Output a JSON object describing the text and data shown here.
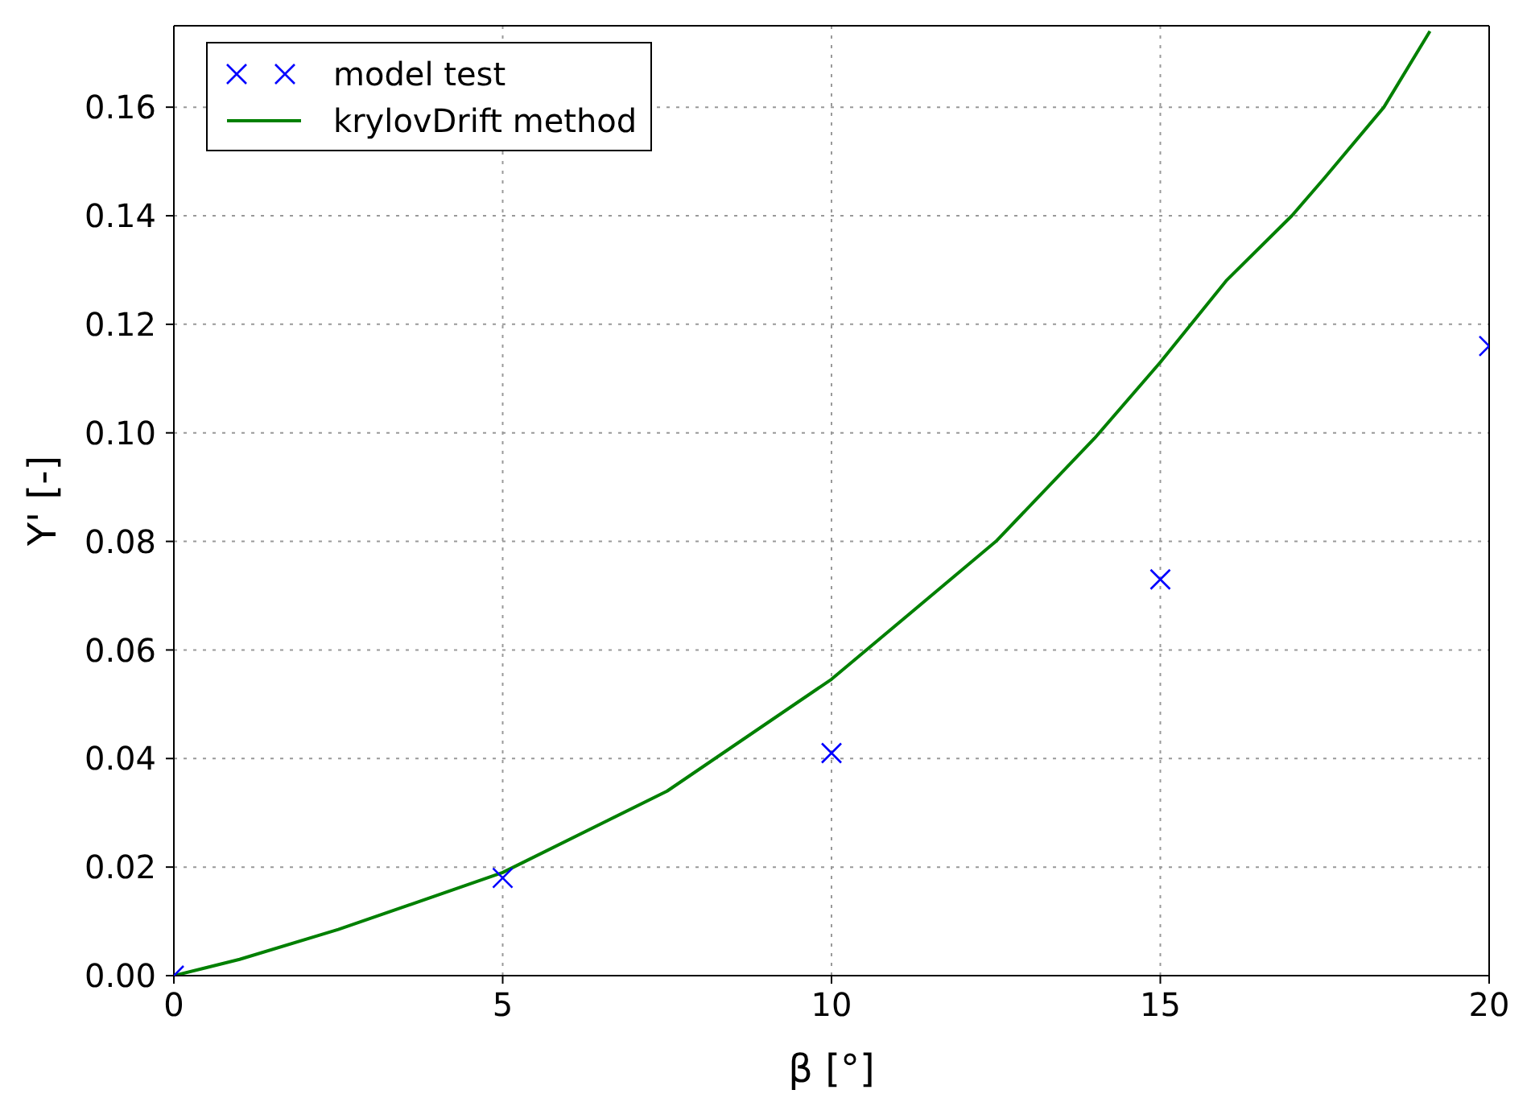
{
  "chart_data": {
    "type": "scatter",
    "xlabel": "β  [°]",
    "ylabel": "Y' [-]",
    "xlim": [
      0,
      20
    ],
    "xticks": [
      0,
      5,
      10,
      15,
      20
    ],
    "ylim": [
      0,
      0.175
    ],
    "yticks": [
      {
        "value": 0,
        "label": "0.00"
      },
      {
        "value": 0.02,
        "label": "0.02"
      },
      {
        "value": 0.04,
        "label": "0.04"
      },
      {
        "value": 0.06,
        "label": "0.06"
      },
      {
        "value": 0.08,
        "label": "0.08"
      },
      {
        "value": 0.1,
        "label": "0.10"
      },
      {
        "value": 0.12,
        "label": "0.12"
      },
      {
        "value": 0.14,
        "label": "0.14"
      },
      {
        "value": 0.16,
        "label": "0.16"
      }
    ],
    "grid": true,
    "legend": "top left",
    "series": [
      {
        "name": "model test",
        "marker": "cross",
        "color": "#0000ff",
        "x": [
          0,
          5,
          10,
          15,
          20
        ],
        "values": [
          0,
          0.018,
          0.041,
          0.073,
          0.116
        ]
      },
      {
        "name": "krylovDrift method",
        "type": "line",
        "marker": "none",
        "color": "#008000",
        "x": [
          0,
          1,
          2.5,
          5,
          7.5,
          10,
          12.5,
          14,
          15,
          16,
          17,
          17.5,
          18.4,
          19.1
        ],
        "values": [
          0,
          0.003,
          0.0085,
          0.019,
          0.034,
          0.0546,
          0.08,
          0.099,
          0.113,
          0.128,
          0.14,
          0.147,
          0.16,
          0.174
        ]
      }
    ]
  }
}
